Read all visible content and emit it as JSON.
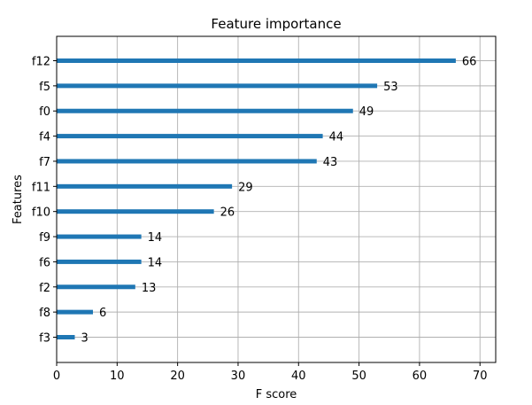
{
  "chart_data": {
    "type": "bar",
    "orientation": "horizontal",
    "title": "Feature importance",
    "xlabel": "F score",
    "ylabel": "Features",
    "categories": [
      "f12",
      "f5",
      "f0",
      "f4",
      "f7",
      "f11",
      "f10",
      "f9",
      "f6",
      "f2",
      "f8",
      "f3"
    ],
    "values": [
      66,
      53,
      49,
      44,
      43,
      29,
      26,
      14,
      14,
      13,
      6,
      3
    ],
    "xlim": [
      0,
      72.6
    ],
    "xticks": [
      0,
      10,
      20,
      30,
      40,
      50,
      60,
      70
    ],
    "grid": true,
    "bar_color": "#1f77b4"
  }
}
